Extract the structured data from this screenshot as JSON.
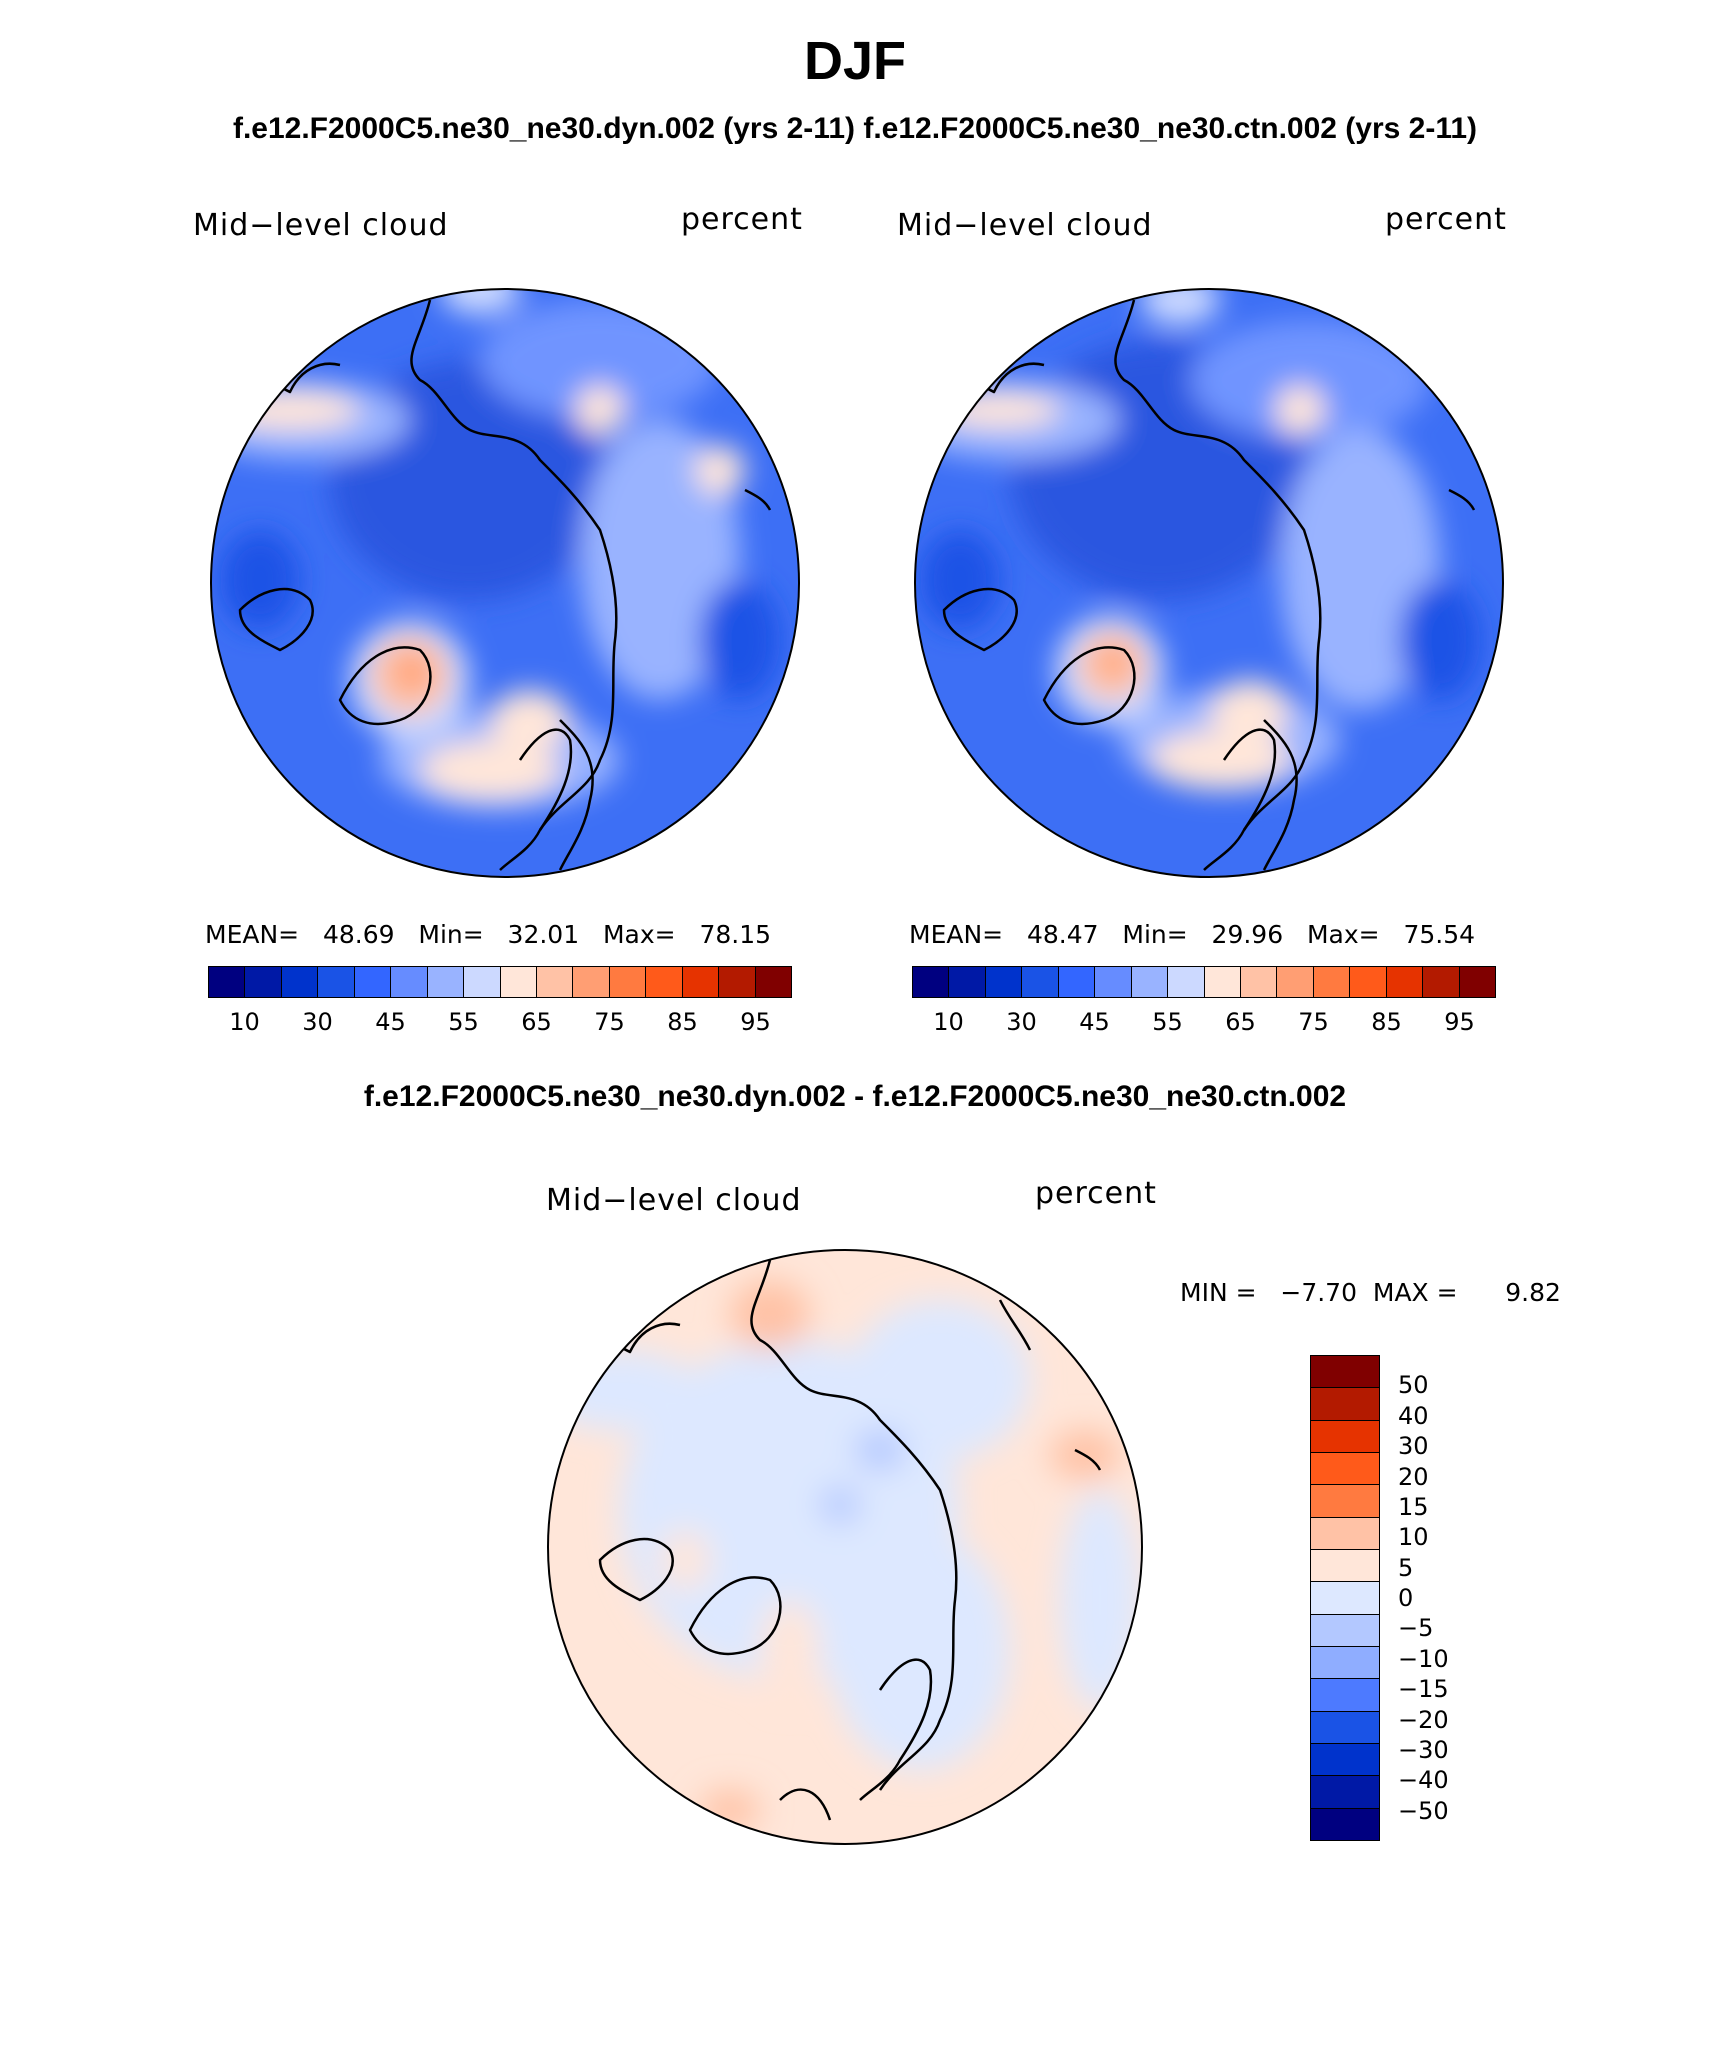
{
  "title": "DJF",
  "subtitle_top": "f.e12.F2000C5.ne30_ne30.dyn.002 (yrs 2-11)  f.e12.F2000C5.ne30_ne30.ctn.002 (yrs 2-11)",
  "subtitle_diff": "f.e12.F2000C5.ne30_ne30.dyn.002 - f.e12.F2000C5.ne30_ne30.ctn.002",
  "colors": {
    "abs": [
      "#000080",
      "#0019a6",
      "#0033cc",
      "#1a53e6",
      "#3366ff",
      "#668cff",
      "#99b3ff",
      "#ccd9ff",
      "#ffe6d9",
      "#ffc2a6",
      "#ff9e73",
      "#ff7a40",
      "#ff5a1a",
      "#e63300",
      "#b31a00",
      "#800000"
    ],
    "diff": [
      "#800000",
      "#b31a00",
      "#e63300",
      "#ff5a1a",
      "#ff7a40",
      "#ffc2a6",
      "#ffe6d9",
      "#dde8ff",
      "#b3c8ff",
      "#8fadff",
      "#4d7aff",
      "#1a53e6",
      "#0033cc",
      "#0019a6",
      "#000080"
    ]
  },
  "panels": [
    {
      "label": "Mid−level cloud",
      "units": "percent",
      "mean_label": "MEAN=",
      "mean": "48.69",
      "min_label": "Min=",
      "min": "32.01",
      "max_label": "Max=",
      "max": "78.15",
      "ticks": [
        "10",
        "30",
        "45",
        "55",
        "65",
        "75",
        "85",
        "95"
      ]
    },
    {
      "label": "Mid−level cloud",
      "units": "percent",
      "mean_label": "MEAN=",
      "mean": "48.47",
      "min_label": "Min=",
      "min": "29.96",
      "max_label": "Max=",
      "max": "75.54",
      "ticks": [
        "10",
        "30",
        "45",
        "55",
        "65",
        "75",
        "85",
        "95"
      ]
    }
  ],
  "diff_panel": {
    "label": "Mid−level cloud",
    "units": "percent",
    "minmax": "MIN =   −7.70  MAX =      9.82",
    "ticks": [
      "50",
      "40",
      "30",
      "20",
      "15",
      "10",
      "5",
      "0",
      "−5",
      "−10",
      "−15",
      "−20",
      "−30",
      "−40",
      "−50"
    ]
  }
}
